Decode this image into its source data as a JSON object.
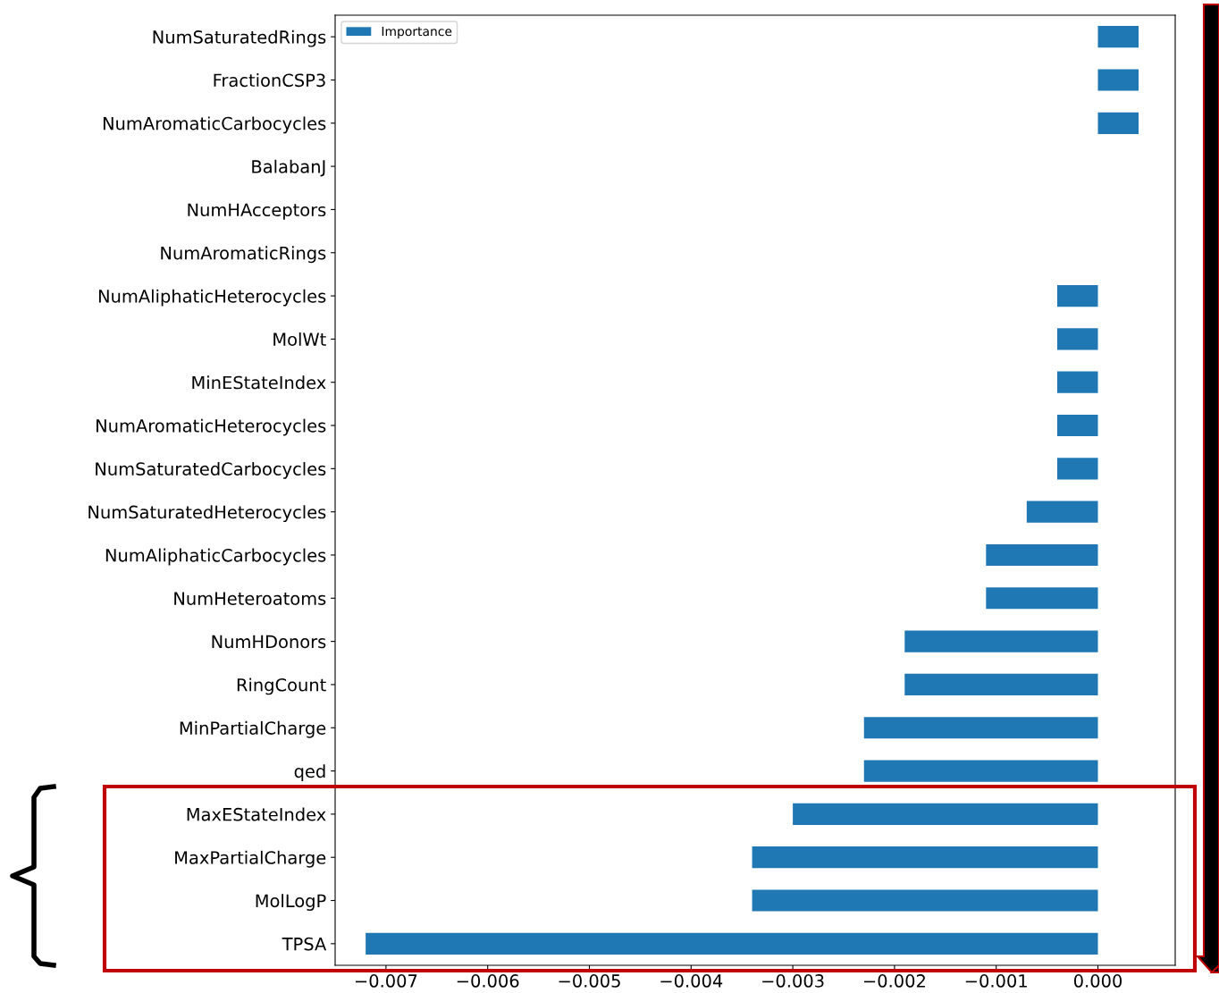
{
  "chart_data": {
    "type": "bar",
    "orientation": "horizontal",
    "categories": [
      "NumSaturatedRings",
      "FractionCSP3",
      "NumAromaticCarbocycles",
      "BalabanJ",
      "NumHAcceptors",
      "NumAromaticRings",
      "NumAliphaticHeterocycles",
      "MolWt",
      "MinEStateIndex",
      "NumAromaticHeterocycles",
      "NumSaturatedCarbocycles",
      "NumSaturatedHeterocycles",
      "NumAliphaticCarbocycles",
      "NumHeteroatoms",
      "NumHDonors",
      "RingCount",
      "MinPartialCharge",
      "qed",
      "MaxEStateIndex",
      "MaxPartialCharge",
      "MolLogP",
      "TPSA"
    ],
    "series": [
      {
        "name": "Importance",
        "color": "#1f77b4",
        "values": [
          0.0004,
          0.0004,
          0.0004,
          0,
          0,
          0,
          -0.0004,
          -0.0004,
          -0.0004,
          -0.0004,
          -0.0004,
          -0.0007,
          -0.0011,
          -0.0011,
          -0.0019,
          -0.0019,
          -0.0023,
          -0.0023,
          -0.003,
          -0.0034,
          -0.0034,
          -0.0072
        ]
      }
    ],
    "xlim": [
      -0.0075,
      0.00076
    ],
    "xticks": [
      {
        "value": -0.007,
        "label": "−0.007"
      },
      {
        "value": -0.006,
        "label": "−0.006"
      },
      {
        "value": -0.005,
        "label": "−0.005"
      },
      {
        "value": -0.004,
        "label": "−0.004"
      },
      {
        "value": -0.003,
        "label": "−0.003"
      },
      {
        "value": -0.002,
        "label": "−0.002"
      },
      {
        "value": -0.001,
        "label": "−0.001"
      },
      {
        "value": 0,
        "label": "0.000"
      }
    ],
    "legend": "top left",
    "grid": false
  }
}
